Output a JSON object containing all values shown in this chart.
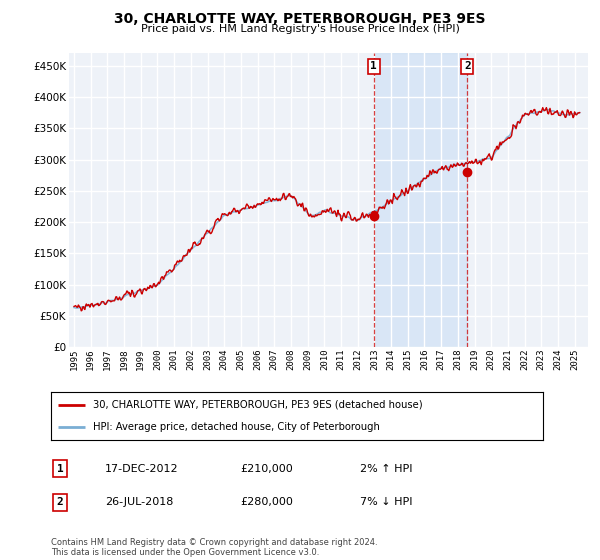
{
  "title": "30, CHARLOTTE WAY, PETERBOROUGH, PE3 9ES",
  "subtitle": "Price paid vs. HM Land Registry's House Price Index (HPI)",
  "ytick_values": [
    0,
    50000,
    100000,
    150000,
    200000,
    250000,
    300000,
    350000,
    400000,
    450000
  ],
  "ylim": [
    0,
    470000
  ],
  "xlim_start": 1994.7,
  "xlim_end": 2025.8,
  "hpi_color": "#7aaed4",
  "price_color": "#cc0000",
  "marker1_date": 2012.96,
  "marker1_price": 210000,
  "marker2_date": 2018.57,
  "marker2_price": 280000,
  "marker1_label": "17-DEC-2012",
  "marker1_amount": "£210,000",
  "marker1_hpi": "2% ↑ HPI",
  "marker2_label": "26-JUL-2018",
  "marker2_amount": "£280,000",
  "marker2_hpi": "7% ↓ HPI",
  "legend_line1": "30, CHARLOTTE WAY, PETERBOROUGH, PE3 9ES (detached house)",
  "legend_line2": "HPI: Average price, detached house, City of Peterborough",
  "footnote": "Contains HM Land Registry data © Crown copyright and database right 2024.\nThis data is licensed under the Open Government Licence v3.0.",
  "background_color": "#ffffff",
  "plot_bg_color": "#eef2f8",
  "grid_color": "#ffffff",
  "shade_color": "#ccdff5",
  "shade_alpha": 0.6
}
